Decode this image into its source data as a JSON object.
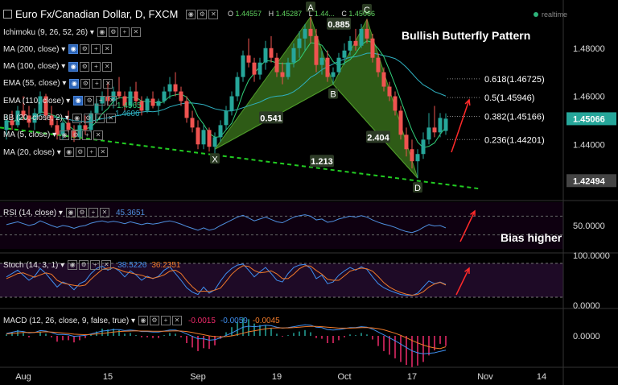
{
  "header": {
    "title": "Euro Fx/Canadian Dollar, D, FXCM",
    "ohlc": [
      {
        "k": "O",
        "v": "1.44557"
      },
      {
        "k": "H",
        "v": "1.45287"
      },
      {
        "k": "L",
        "v": "1.44..."
      },
      {
        "k": "C",
        "v": "1.45066"
      }
    ],
    "status": "realtime",
    "colors": {
      "up": "#26a69a",
      "down": "#ef5350",
      "pattern": "#4a8a2a",
      "dashed": "#22cc22"
    }
  },
  "indicators": [
    {
      "label": "Ichimoku (9, 26, 52, 26)"
    },
    {
      "label": "MA (200, close)"
    },
    {
      "label": "MA (100, close)"
    },
    {
      "label": "EMA (55, close)"
    },
    {
      "label": "EMA (110, close)"
    },
    {
      "label": "BB (20, close, 2)"
    },
    {
      "label": "MA (5, close)"
    },
    {
      "label": "MA (20, close)"
    }
  ],
  "annotations": {
    "pattern_title": "Bullish Butterfly Pattern",
    "bias": "Bias higher",
    "ma5_value": "1.4565",
    "ma20_value": "1.4606"
  },
  "chart_data": [
    {
      "type": "candlestick",
      "ylim": [
        1.417,
        1.5
      ],
      "yticks": [
        {
          "value": 1.48,
          "label": "1.48000"
        },
        {
          "value": 1.46,
          "label": "1.46000"
        },
        {
          "value": 1.44,
          "label": "1.44000"
        }
      ],
      "price_tags": [
        {
          "value": 1.45066,
          "label": "1.45066",
          "color": "#26a69a"
        },
        {
          "value": 1.42494,
          "label": "1.42494",
          "color": "#444"
        }
      ],
      "x_labels": [
        {
          "i": 3,
          "label": "Aug"
        },
        {
          "i": 18,
          "label": "15"
        },
        {
          "i": 34,
          "label": "Sep"
        },
        {
          "i": 48,
          "label": "19"
        },
        {
          "i": 60,
          "label": "Oct"
        },
        {
          "i": 72,
          "label": "17"
        },
        {
          "i": 85,
          "label": "Nov"
        },
        {
          "i": 95,
          "label": "14"
        }
      ],
      "fib_levels": [
        {
          "label": "0.618(1.46725)",
          "value": 1.46725
        },
        {
          "label": "0.5(1.45946)",
          "value": 1.45946
        },
        {
          "label": "0.382(1.45166)",
          "value": 1.45166
        },
        {
          "label": "0.236(1.44201)",
          "value": 1.44201
        }
      ],
      "pattern_points": [
        {
          "label": "X",
          "i": 37,
          "value": 1.438
        },
        {
          "label": "A",
          "i": 54,
          "value": 1.493
        },
        {
          "label": "B",
          "i": 58,
          "value": 1.465
        },
        {
          "label": "C",
          "i": 64,
          "value": 1.492
        },
        {
          "label": "D",
          "i": 73,
          "value": 1.426
        }
      ],
      "pattern_ratios": [
        {
          "label": "0.541",
          "i": 47,
          "value": 1.451
        },
        {
          "label": "0.885",
          "i": 59,
          "value": 1.49
        },
        {
          "label": "2.404",
          "i": 66,
          "value": 1.443
        },
        {
          "label": "1.213",
          "i": 56,
          "value": 1.433
        }
      ],
      "series": [
        {
          "o": 1.446,
          "h": 1.452,
          "l": 1.442,
          "c": 1.45
        },
        {
          "o": 1.45,
          "h": 1.454,
          "l": 1.446,
          "c": 1.448
        },
        {
          "o": 1.448,
          "h": 1.456,
          "l": 1.447,
          "c": 1.454
        },
        {
          "o": 1.454,
          "h": 1.46,
          "l": 1.45,
          "c": 1.452
        },
        {
          "o": 1.452,
          "h": 1.456,
          "l": 1.447,
          "c": 1.449
        },
        {
          "o": 1.449,
          "h": 1.455,
          "l": 1.446,
          "c": 1.453
        },
        {
          "o": 1.453,
          "h": 1.462,
          "l": 1.452,
          "c": 1.46
        },
        {
          "o": 1.46,
          "h": 1.461,
          "l": 1.45,
          "c": 1.452
        },
        {
          "o": 1.452,
          "h": 1.456,
          "l": 1.447,
          "c": 1.448
        },
        {
          "o": 1.448,
          "h": 1.45,
          "l": 1.442,
          "c": 1.444
        },
        {
          "o": 1.444,
          "h": 1.45,
          "l": 1.442,
          "c": 1.449
        },
        {
          "o": 1.449,
          "h": 1.454,
          "l": 1.445,
          "c": 1.446
        },
        {
          "o": 1.446,
          "h": 1.448,
          "l": 1.441,
          "c": 1.443
        },
        {
          "o": 1.443,
          "h": 1.449,
          "l": 1.442,
          "c": 1.448
        },
        {
          "o": 1.448,
          "h": 1.452,
          "l": 1.444,
          "c": 1.446
        },
        {
          "o": 1.446,
          "h": 1.454,
          "l": 1.445,
          "c": 1.453
        },
        {
          "o": 1.453,
          "h": 1.459,
          "l": 1.45,
          "c": 1.457
        },
        {
          "o": 1.457,
          "h": 1.462,
          "l": 1.454,
          "c": 1.46
        },
        {
          "o": 1.46,
          "h": 1.466,
          "l": 1.456,
          "c": 1.458
        },
        {
          "o": 1.458,
          "h": 1.464,
          "l": 1.455,
          "c": 1.462
        },
        {
          "o": 1.462,
          "h": 1.468,
          "l": 1.459,
          "c": 1.46
        },
        {
          "o": 1.46,
          "h": 1.462,
          "l": 1.454,
          "c": 1.456
        },
        {
          "o": 1.456,
          "h": 1.464,
          "l": 1.455,
          "c": 1.462
        },
        {
          "o": 1.462,
          "h": 1.466,
          "l": 1.456,
          "c": 1.458
        },
        {
          "o": 1.458,
          "h": 1.46,
          "l": 1.452,
          "c": 1.454
        },
        {
          "o": 1.454,
          "h": 1.46,
          "l": 1.453,
          "c": 1.459
        },
        {
          "o": 1.459,
          "h": 1.462,
          "l": 1.455,
          "c": 1.456
        },
        {
          "o": 1.456,
          "h": 1.459,
          "l": 1.452,
          "c": 1.458
        },
        {
          "o": 1.458,
          "h": 1.464,
          "l": 1.457,
          "c": 1.462
        },
        {
          "o": 1.462,
          "h": 1.468,
          "l": 1.459,
          "c": 1.465
        },
        {
          "o": 1.465,
          "h": 1.47,
          "l": 1.46,
          "c": 1.462
        },
        {
          "o": 1.462,
          "h": 1.464,
          "l": 1.456,
          "c": 1.458
        },
        {
          "o": 1.458,
          "h": 1.46,
          "l": 1.449,
          "c": 1.451
        },
        {
          "o": 1.451,
          "h": 1.454,
          "l": 1.445,
          "c": 1.447
        },
        {
          "o": 1.447,
          "h": 1.45,
          "l": 1.438,
          "c": 1.44
        },
        {
          "o": 1.44,
          "h": 1.448,
          "l": 1.438,
          "c": 1.446
        },
        {
          "o": 1.446,
          "h": 1.447,
          "l": 1.437,
          "c": 1.439
        },
        {
          "o": 1.439,
          "h": 1.445,
          "l": 1.436,
          "c": 1.443
        },
        {
          "o": 1.443,
          "h": 1.45,
          "l": 1.441,
          "c": 1.448
        },
        {
          "o": 1.448,
          "h": 1.456,
          "l": 1.446,
          "c": 1.454
        },
        {
          "o": 1.454,
          "h": 1.462,
          "l": 1.452,
          "c": 1.46
        },
        {
          "o": 1.46,
          "h": 1.47,
          "l": 1.458,
          "c": 1.468
        },
        {
          "o": 1.468,
          "h": 1.479,
          "l": 1.466,
          "c": 1.477
        },
        {
          "o": 1.477,
          "h": 1.484,
          "l": 1.472,
          "c": 1.474
        },
        {
          "o": 1.474,
          "h": 1.476,
          "l": 1.466,
          "c": 1.469
        },
        {
          "o": 1.469,
          "h": 1.476,
          "l": 1.467,
          "c": 1.474
        },
        {
          "o": 1.474,
          "h": 1.483,
          "l": 1.471,
          "c": 1.48
        },
        {
          "o": 1.48,
          "h": 1.485,
          "l": 1.474,
          "c": 1.476
        },
        {
          "o": 1.476,
          "h": 1.478,
          "l": 1.468,
          "c": 1.47
        },
        {
          "o": 1.47,
          "h": 1.474,
          "l": 1.465,
          "c": 1.468
        },
        {
          "o": 1.468,
          "h": 1.476,
          "l": 1.467,
          "c": 1.474
        },
        {
          "o": 1.474,
          "h": 1.482,
          "l": 1.472,
          "c": 1.48
        },
        {
          "o": 1.48,
          "h": 1.487,
          "l": 1.476,
          "c": 1.484
        },
        {
          "o": 1.484,
          "h": 1.49,
          "l": 1.479,
          "c": 1.488
        },
        {
          "o": 1.488,
          "h": 1.493,
          "l": 1.482,
          "c": 1.485
        },
        {
          "o": 1.485,
          "h": 1.488,
          "l": 1.47,
          "c": 1.473
        },
        {
          "o": 1.473,
          "h": 1.479,
          "l": 1.469,
          "c": 1.476
        },
        {
          "o": 1.476,
          "h": 1.479,
          "l": 1.466,
          "c": 1.468
        },
        {
          "o": 1.468,
          "h": 1.472,
          "l": 1.465,
          "c": 1.47
        },
        {
          "o": 1.47,
          "h": 1.478,
          "l": 1.469,
          "c": 1.476
        },
        {
          "o": 1.476,
          "h": 1.482,
          "l": 1.473,
          "c": 1.479
        },
        {
          "o": 1.479,
          "h": 1.485,
          "l": 1.477,
          "c": 1.483
        },
        {
          "o": 1.483,
          "h": 1.488,
          "l": 1.479,
          "c": 1.481
        },
        {
          "o": 1.481,
          "h": 1.49,
          "l": 1.48,
          "c": 1.488
        },
        {
          "o": 1.488,
          "h": 1.492,
          "l": 1.482,
          "c": 1.484
        },
        {
          "o": 1.484,
          "h": 1.486,
          "l": 1.474,
          "c": 1.476
        },
        {
          "o": 1.476,
          "h": 1.478,
          "l": 1.468,
          "c": 1.47
        },
        {
          "o": 1.47,
          "h": 1.472,
          "l": 1.462,
          "c": 1.464
        },
        {
          "o": 1.464,
          "h": 1.466,
          "l": 1.458,
          "c": 1.46
        },
        {
          "o": 1.46,
          "h": 1.462,
          "l": 1.452,
          "c": 1.454
        },
        {
          "o": 1.454,
          "h": 1.456,
          "l": 1.442,
          "c": 1.444
        },
        {
          "o": 1.444,
          "h": 1.447,
          "l": 1.435,
          "c": 1.438
        },
        {
          "o": 1.438,
          "h": 1.442,
          "l": 1.43,
          "c": 1.433
        },
        {
          "o": 1.433,
          "h": 1.438,
          "l": 1.426,
          "c": 1.436
        },
        {
          "o": 1.436,
          "h": 1.445,
          "l": 1.434,
          "c": 1.442
        },
        {
          "o": 1.442,
          "h": 1.453,
          "l": 1.44,
          "c": 1.447
        },
        {
          "o": 1.447,
          "h": 1.456,
          "l": 1.443,
          "c": 1.445
        },
        {
          "o": 1.445,
          "h": 1.453,
          "l": 1.443,
          "c": 1.451
        },
        {
          "o": 1.4456,
          "h": 1.4529,
          "l": 1.444,
          "c": 1.4507
        }
      ]
    },
    {
      "type": "line",
      "name": "RSI (14, close)",
      "value_label": "45.3651",
      "ylim": [
        0,
        100
      ],
      "yticks": [
        {
          "value": 50,
          "label": "50.0000"
        }
      ],
      "values": [
        52,
        55,
        58,
        54,
        50,
        53,
        60,
        55,
        50,
        46,
        50,
        48,
        44,
        48,
        50,
        55,
        58,
        60,
        57,
        59,
        57,
        54,
        58,
        55,
        52,
        55,
        53,
        55,
        58,
        60,
        57,
        53,
        48,
        44,
        40,
        45,
        40,
        43,
        50,
        56,
        62,
        68,
        72,
        66,
        60,
        64,
        68,
        63,
        58,
        56,
        62,
        68,
        71,
        73,
        70,
        62,
        64,
        57,
        59,
        64,
        67,
        70,
        68,
        71,
        68,
        62,
        57,
        53,
        50,
        46,
        41,
        37,
        35,
        39,
        46,
        52,
        49,
        50,
        45
      ]
    },
    {
      "type": "line",
      "name": "Stoch (14, 3, 1)",
      "value_labels": [
        "38.5226",
        "36.2351"
      ],
      "ylim": [
        0,
        100
      ],
      "yticks": [
        {
          "value": 100,
          "label": "100.0000"
        },
        {
          "value": 0,
          "label": "0.0000"
        }
      ],
      "series": [
        {
          "name": "%K",
          "values": [
            60,
            70,
            80,
            65,
            50,
            62,
            85,
            70,
            50,
            30,
            45,
            38,
            22,
            40,
            48,
            70,
            85,
            92,
            80,
            88,
            78,
            60,
            78,
            66,
            50,
            62,
            55,
            62,
            80,
            90,
            70,
            50,
            28,
            15,
            8,
            30,
            12,
            22,
            48,
            70,
            85,
            95,
            98,
            80,
            60,
            75,
            88,
            70,
            50,
            45,
            70,
            88,
            95,
            97,
            85,
            55,
            65,
            40,
            45,
            65,
            78,
            88,
            80,
            90,
            82,
            60,
            40,
            28,
            20,
            14,
            8,
            6,
            5,
            12,
            30,
            48,
            40,
            45,
            38
          ]
        },
        {
          "name": "%D",
          "values": [
            55,
            62,
            70,
            72,
            65,
            59,
            66,
            72,
            68,
            50,
            42,
            38,
            35,
            33,
            36,
            53,
            68,
            82,
            86,
            87,
            82,
            75,
            72,
            68,
            65,
            59,
            56,
            60,
            66,
            77,
            80,
            70,
            49,
            31,
            17,
            18,
            17,
            21,
            27,
            47,
            68,
            83,
            93,
            91,
            79,
            72,
            74,
            78,
            69,
            55,
            55,
            68,
            84,
            93,
            92,
            79,
            68,
            53,
            50,
            50,
            63,
            77,
            82,
            86,
            84,
            77,
            61,
            43,
            30,
            21,
            14,
            9,
            6,
            8,
            16,
            30,
            39,
            44,
            36
          ]
        }
      ]
    },
    {
      "type": "line",
      "name": "MACD (12, 26, close, 9, false, true)",
      "value_labels": [
        "-0.0015",
        "-0.0059",
        "-0.0045"
      ],
      "ylim": [
        -0.012,
        0.008
      ],
      "yticks": [
        {
          "value": 0,
          "label": "0.0000"
        }
      ],
      "series": [
        {
          "name": "MACD",
          "values": [
            0.001,
            0.0015,
            0.002,
            0.0018,
            0.0012,
            0.0014,
            0.0022,
            0.002,
            0.0014,
            0.0006,
            0.0006,
            0.0004,
            -0.0002,
            0.0,
            0.0002,
            0.0008,
            0.0014,
            0.002,
            0.0022,
            0.0026,
            0.0026,
            0.0022,
            0.0024,
            0.0022,
            0.0018,
            0.0018,
            0.0016,
            0.0016,
            0.002,
            0.0024,
            0.0024,
            0.0018,
            0.0008,
            -0.0002,
            -0.0012,
            -0.0012,
            -0.0018,
            -0.0016,
            -0.0008,
            0.0002,
            0.0012,
            0.0024,
            0.0036,
            0.004,
            0.0038,
            0.004,
            0.0044,
            0.0042,
            0.0036,
            0.0032,
            0.0034,
            0.0038,
            0.0042,
            0.0046,
            0.0044,
            0.0036,
            0.0034,
            0.0026,
            0.0024,
            0.0026,
            0.003,
            0.0034,
            0.0034,
            0.0038,
            0.0036,
            0.0028,
            0.0016,
            0.0004,
            -0.0008,
            -0.002,
            -0.0034,
            -0.0048,
            -0.0062,
            -0.007,
            -0.0074,
            -0.0072,
            -0.007,
            -0.0064,
            -0.0059
          ]
        },
        {
          "name": "Signal",
          "values": [
            0.0008,
            0.001,
            0.0012,
            0.0014,
            0.0014,
            0.0014,
            0.0016,
            0.0017,
            0.0016,
            0.0014,
            0.0012,
            0.001,
            0.0007,
            0.0006,
            0.0005,
            0.0006,
            0.0008,
            0.001,
            0.0013,
            0.0016,
            0.0018,
            0.0019,
            0.002,
            0.0021,
            0.002,
            0.002,
            0.0019,
            0.0019,
            0.0019,
            0.002,
            0.0021,
            0.002,
            0.0018,
            0.0014,
            0.0009,
            0.0005,
            0.0,
            -0.0003,
            -0.0004,
            -0.0003,
            0.0,
            0.0005,
            0.0011,
            0.0017,
            0.0021,
            0.0025,
            0.0029,
            0.0032,
            0.0033,
            0.0033,
            0.0033,
            0.0034,
            0.0036,
            0.0038,
            0.0039,
            0.0039,
            0.0038,
            0.0036,
            0.0034,
            0.0032,
            0.0032,
            0.0032,
            0.0033,
            0.0034,
            0.0034,
            0.0033,
            0.003,
            0.0025,
            0.0018,
            0.0011,
            0.0002,
            -0.0008,
            -0.0019,
            -0.0029,
            -0.0038,
            -0.0045,
            -0.005,
            -0.0053,
            -0.0045
          ]
        }
      ]
    }
  ]
}
